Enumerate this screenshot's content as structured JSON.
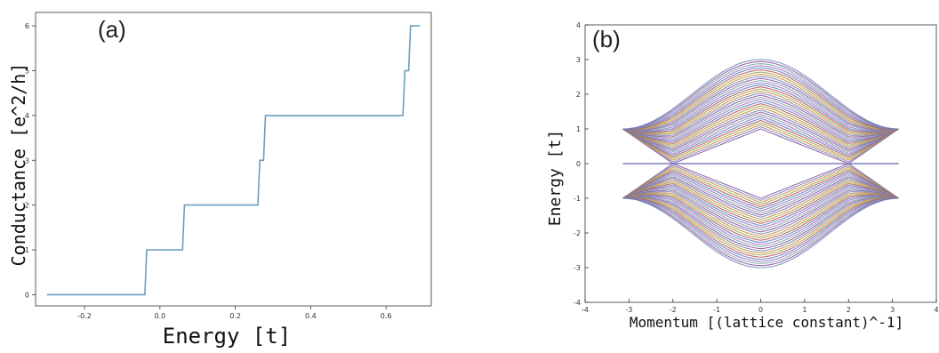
{
  "chart_data": [
    {
      "type": "line",
      "panel_label": "(a)",
      "xlabel": "Energy [t]",
      "ylabel": "Conductance [e^2/h]",
      "xlim": [
        -0.33,
        0.72
      ],
      "ylim": [
        -0.25,
        6.3
      ],
      "xticks": [
        {
          "value": -0.2,
          "label": "-0.2"
        },
        {
          "value": 0.0,
          "label": "0.0"
        },
        {
          "value": 0.2,
          "label": "0.2"
        },
        {
          "value": 0.4,
          "label": "0.4"
        },
        {
          "value": 0.6,
          "label": "0.6"
        }
      ],
      "yticks": [
        {
          "value": 0,
          "label": "0"
        },
        {
          "value": 1,
          "label": "1"
        },
        {
          "value": 2,
          "label": "2"
        },
        {
          "value": 3,
          "label": "3"
        },
        {
          "value": 4,
          "label": "4"
        },
        {
          "value": 5,
          "label": "5"
        },
        {
          "value": 6,
          "label": "6"
        }
      ],
      "series": [
        {
          "color": "#6a9ec0",
          "x": [
            -0.3,
            -0.04,
            -0.035,
            0.06,
            0.065,
            0.26,
            0.265,
            0.275,
            0.28,
            0.645,
            0.65,
            0.66,
            0.665,
            0.69
          ],
          "y": [
            0,
            0,
            1,
            1,
            2,
            2,
            3,
            3,
            4,
            4,
            5,
            5,
            6,
            6
          ]
        }
      ]
    },
    {
      "type": "line",
      "panel_label": "(b)",
      "xlabel": "Momentum [(lattice constant)^-1]",
      "ylabel": "Energy [t]",
      "xlim": [
        -4,
        4
      ],
      "ylim": [
        -4,
        4
      ],
      "xticks": [
        {
          "value": -4,
          "label": "-4"
        },
        {
          "value": -3,
          "label": "-3"
        },
        {
          "value": -2,
          "label": "-2"
        },
        {
          "value": -1,
          "label": "-1"
        },
        {
          "value": 0,
          "label": "0"
        },
        {
          "value": 1,
          "label": "1"
        },
        {
          "value": 2,
          "label": "2"
        },
        {
          "value": 3,
          "label": "3"
        },
        {
          "value": 4,
          "label": "4"
        }
      ],
      "yticks": [
        {
          "value": -4,
          "label": "-4"
        },
        {
          "value": -3,
          "label": "-3"
        },
        {
          "value": -2,
          "label": "-2"
        },
        {
          "value": -1,
          "label": "-1"
        },
        {
          "value": 0,
          "label": "0"
        },
        {
          "value": 1,
          "label": "1"
        },
        {
          "value": 2,
          "label": "2"
        },
        {
          "value": 3,
          "label": "3"
        },
        {
          "value": 4,
          "label": "4"
        }
      ],
      "k_range": [
        -3.14,
        3.14
      ],
      "zero_mode_energy": 0,
      "zero_mode_color": "#7f7fb8",
      "band_description": "bulk bands between |E|=1 at k=±π and |E| up to 3 at k=0, touching zero near k=±2",
      "band_colors": [
        "#8c4f9e",
        "#6f86b8",
        "#d08c3c",
        "#9aa65c",
        "#c0504d",
        "#4f81bd",
        "#a36bc4",
        "#7aa6a6"
      ]
    }
  ]
}
